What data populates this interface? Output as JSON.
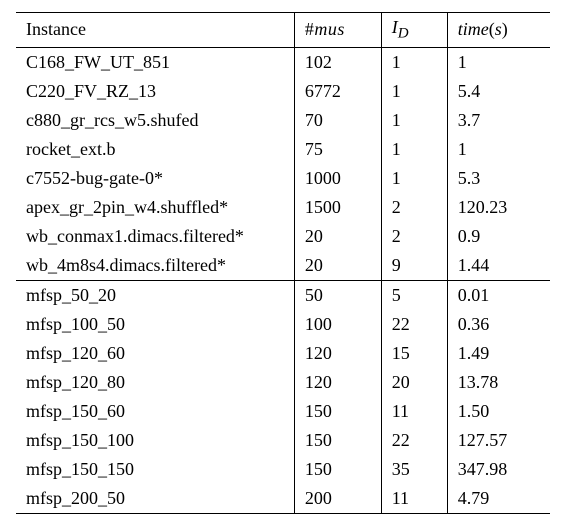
{
  "headers": {
    "instance": "Instance",
    "mus": "#mus",
    "id_html": "I<sub>D</sub>",
    "time_html": "time(s)"
  },
  "group1": [
    {
      "instance": "C168_FW_UT_851",
      "mus": "102",
      "id": "1",
      "time": "1"
    },
    {
      "instance": "C220_FV_RZ_13",
      "mus": "6772",
      "id": "1",
      "time": "5.4"
    },
    {
      "instance": "c880_gr_rcs_w5.shufed",
      "mus": "70",
      "id": "1",
      "time": "3.7"
    },
    {
      "instance": "rocket_ext.b",
      "mus": "75",
      "id": "1",
      "time": "1"
    },
    {
      "instance": "c7552-bug-gate-0*",
      "mus": "1000",
      "id": "1",
      "time": "5.3"
    },
    {
      "instance": "apex_gr_2pin_w4.shuffled*",
      "mus": "1500",
      "id": "2",
      "time": "120.23"
    },
    {
      "instance": "wb_conmax1.dimacs.filtered*",
      "mus": "20",
      "id": "2",
      "time": "0.9"
    },
    {
      "instance": "wb_4m8s4.dimacs.filtered*",
      "mus": "20",
      "id": "9",
      "time": "1.44"
    }
  ],
  "group2": [
    {
      "instance": "mfsp_50_20",
      "mus": "50",
      "id": "5",
      "time": "0.01"
    },
    {
      "instance": "mfsp_100_50",
      "mus": "100",
      "id": "22",
      "time": "0.36"
    },
    {
      "instance": "mfsp_120_60",
      "mus": "120",
      "id": "15",
      "time": "1.49"
    },
    {
      "instance": "mfsp_120_80",
      "mus": "120",
      "id": "20",
      "time": "13.78"
    },
    {
      "instance": "mfsp_150_60",
      "mus": "150",
      "id": "11",
      "time": "1.50"
    },
    {
      "instance": "mfsp_150_100",
      "mus": "150",
      "id": "22",
      "time": "127.57"
    },
    {
      "instance": "mfsp_150_150",
      "mus": "150",
      "id": "35",
      "time": "347.98"
    },
    {
      "instance": "mfsp_200_50",
      "mus": "200",
      "id": "11",
      "time": "4.79"
    }
  ]
}
